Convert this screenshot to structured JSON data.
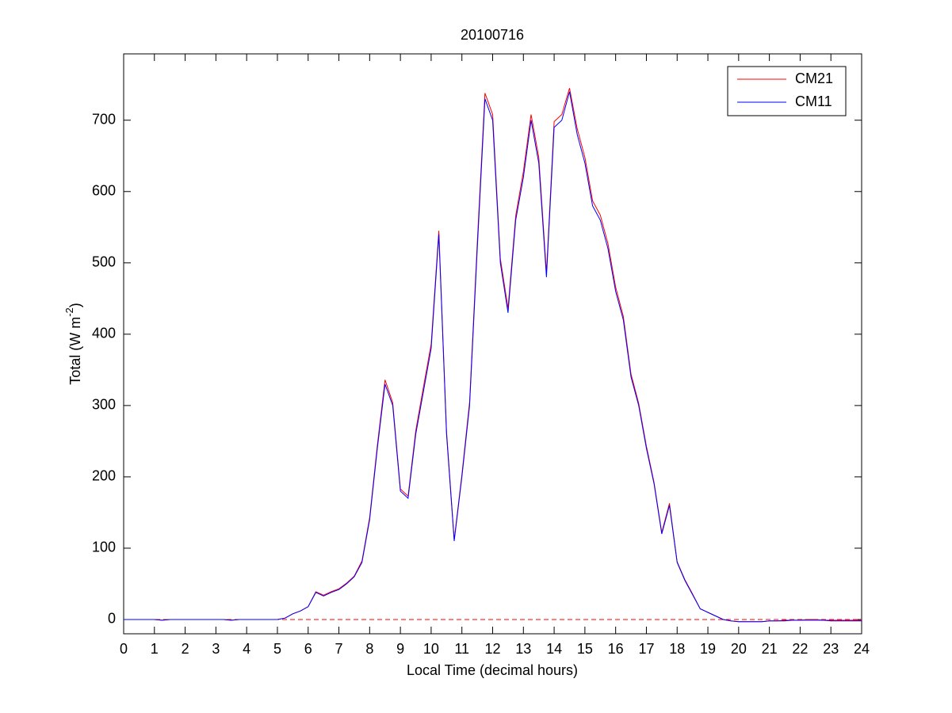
{
  "chart_data": {
    "type": "line",
    "title": "20100716",
    "xlabel": "Local Time (decimal hours)",
    "ylabel": [
      "Total (W m",
      "-2",
      ")"
    ],
    "x": [
      0,
      0.25,
      0.5,
      0.75,
      1,
      1.25,
      1.5,
      1.75,
      2,
      2.25,
      2.5,
      2.75,
      3,
      3.25,
      3.5,
      3.75,
      4,
      4.25,
      4.5,
      4.75,
      5,
      5.25,
      5.5,
      5.75,
      6,
      6.25,
      6.5,
      6.75,
      7,
      7.25,
      7.5,
      7.75,
      8,
      8.25,
      8.5,
      8.75,
      9,
      9.25,
      9.5,
      9.75,
      10,
      10.25,
      10.5,
      10.75,
      11,
      11.25,
      11.5,
      11.75,
      12,
      12.25,
      12.5,
      12.75,
      13,
      13.25,
      13.5,
      13.75,
      14,
      14.25,
      14.5,
      14.75,
      15,
      15.25,
      15.5,
      15.75,
      16,
      16.25,
      16.5,
      16.75,
      17,
      17.25,
      17.5,
      17.75,
      18,
      18.25,
      18.5,
      18.75,
      19,
      19.25,
      19.5,
      19.75,
      20,
      20.25,
      20.5,
      20.75,
      21,
      21.25,
      21.5,
      21.75,
      22,
      22.25,
      22.5,
      22.75,
      23,
      23.25,
      23.5,
      23.75,
      24
    ],
    "series": [
      {
        "name": "CM21",
        "color": "#ff0000",
        "values": [
          0,
          0,
          0,
          0,
          0,
          -1,
          0,
          0,
          0,
          0,
          0,
          0,
          0,
          0,
          -1,
          0,
          0,
          0,
          0,
          0,
          0,
          2,
          8,
          12,
          18,
          39,
          34,
          39,
          43,
          51,
          61,
          82,
          143,
          244,
          336,
          304,
          183,
          173,
          265,
          326,
          386,
          545,
          264,
          112,
          203,
          305,
          528,
          738,
          708,
          506,
          436,
          566,
          628,
          708,
          648,
          486,
          698,
          708,
          745,
          688,
          648,
          587,
          567,
          527,
          466,
          425,
          344,
          303,
          243,
          192,
          122,
          163,
          81,
          56,
          36,
          15,
          10,
          5,
          0,
          -2,
          -3,
          -3,
          -3,
          -3,
          -2,
          -2,
          -1,
          -1,
          -1,
          0,
          0,
          -1,
          -1,
          -1,
          -1,
          -1,
          -1
        ]
      },
      {
        "name": "CM11",
        "color": "#0000ff",
        "values": [
          0,
          0,
          0,
          0,
          0,
          -1,
          0,
          0,
          0,
          0,
          0,
          0,
          0,
          0,
          -1,
          0,
          0,
          0,
          0,
          0,
          0,
          2,
          8,
          12,
          18,
          38,
          33,
          38,
          42,
          50,
          60,
          80,
          140,
          240,
          330,
          300,
          180,
          170,
          260,
          320,
          380,
          540,
          260,
          110,
          200,
          300,
          520,
          730,
          700,
          500,
          430,
          560,
          620,
          700,
          640,
          480,
          690,
          700,
          740,
          680,
          640,
          580,
          560,
          520,
          460,
          420,
          340,
          300,
          240,
          190,
          120,
          160,
          80,
          55,
          35,
          15,
          10,
          5,
          0,
          -2,
          -3,
          -3,
          -3,
          -3,
          -2,
          -2,
          -2,
          -1,
          -1,
          -1,
          -1,
          -1,
          -2,
          -2,
          -2,
          -2,
          -2
        ]
      }
    ],
    "xlim": [
      0,
      24
    ],
    "xticks": [
      0,
      1,
      2,
      3,
      4,
      5,
      6,
      7,
      8,
      9,
      10,
      11,
      12,
      13,
      14,
      15,
      16,
      17,
      18,
      19,
      20,
      21,
      22,
      23,
      24
    ],
    "ylim": [
      -20,
      793
    ],
    "yticks": [
      0,
      100,
      200,
      300,
      400,
      500,
      600,
      700
    ],
    "reference_line": {
      "y": 0,
      "color": "#ff0000",
      "style": "dashed"
    },
    "legend": "upper right",
    "grid": false
  }
}
